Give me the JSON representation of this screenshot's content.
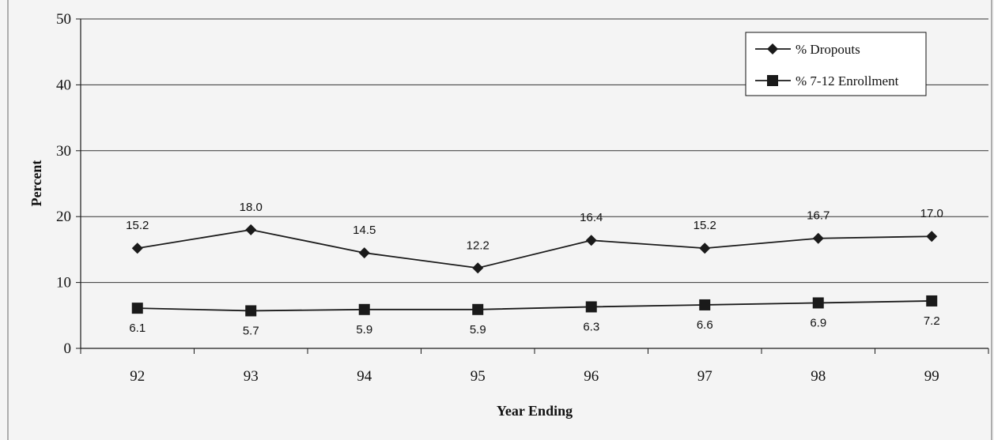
{
  "chart_data": {
    "type": "line",
    "categories": [
      "92",
      "93",
      "94",
      "95",
      "96",
      "97",
      "98",
      "99"
    ],
    "series": [
      {
        "name": "% Dropouts",
        "values": [
          15.2,
          18.0,
          14.5,
          12.2,
          16.4,
          15.2,
          16.7,
          17.0
        ],
        "labels": [
          "15.2",
          "18.0",
          "14.5",
          "12.2",
          "16.4",
          "15.2",
          "16.7",
          "17.0"
        ],
        "marker": "diamond"
      },
      {
        "name": "% 7-12 Enrollment",
        "values": [
          6.1,
          5.7,
          5.9,
          5.9,
          6.3,
          6.6,
          6.9,
          7.2
        ],
        "labels": [
          "6.1",
          "5.7",
          "5.9",
          "5.9",
          "6.3",
          "6.6",
          "6.9",
          "7.2"
        ],
        "marker": "square"
      }
    ],
    "yticks": [
      "0",
      "10",
      "20",
      "30",
      "40",
      "50"
    ],
    "ylim": [
      0,
      50
    ],
    "xlabel": "Year Ending",
    "ylabel": "Percent",
    "grid": true,
    "legend": "top-right",
    "colors": {
      "line": "#1a1a1a",
      "grid": "#333333",
      "background": "#f4f4f4"
    }
  }
}
